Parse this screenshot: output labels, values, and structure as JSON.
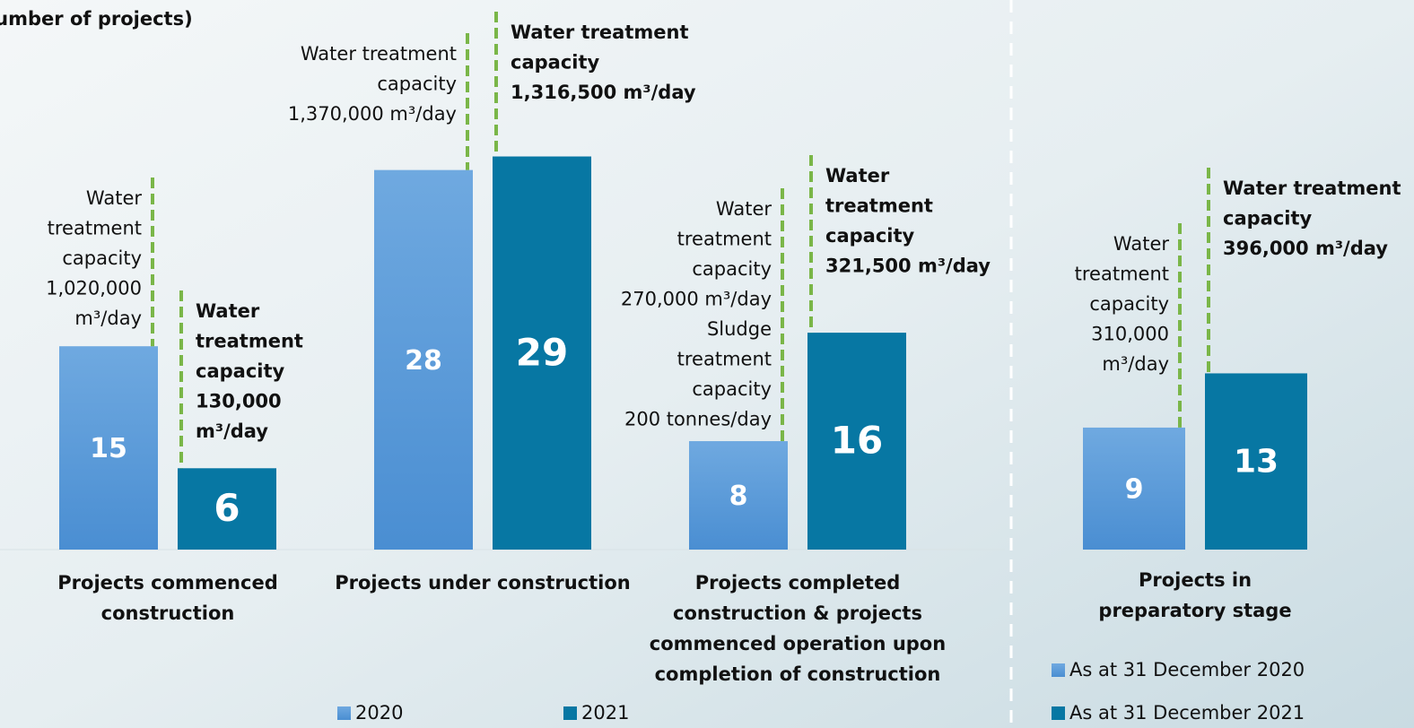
{
  "chart_data": [
    {
      "type": "bar",
      "title": "(Number of projects)",
      "categories": [
        "Projects commenced construction",
        "Projects under construction",
        "Projects completed construction & projects commenced operation upon completion of construction"
      ],
      "category_lines": [
        [
          "Projects commenced",
          "construction"
        ],
        [
          "Projects under construction"
        ],
        [
          "Projects completed",
          "construction & projects",
          "commenced operation upon",
          "completion of construction"
        ]
      ],
      "series": [
        {
          "name": "2020",
          "color": "#5b9bd9",
          "values": [
            15,
            28,
            8
          ],
          "annotations": [
            [
              "Water",
              "treatment",
              "capacity",
              "1,020,000",
              "m³/day"
            ],
            [
              "Water treatment",
              "capacity",
              "1,370,000 m³/day"
            ],
            [
              "Water",
              "treatment",
              "capacity",
              "270,000 m³/day",
              "Sludge",
              "treatment",
              "capacity",
              "200 tonnes/day"
            ]
          ]
        },
        {
          "name": "2021",
          "color": "#0777a3",
          "values": [
            6,
            29,
            16
          ],
          "annotations": [
            [
              "Water",
              "treatment",
              "capacity",
              "130,000",
              "m³/day"
            ],
            [
              "Water treatment",
              "capacity",
              "1,316,500 m³/day"
            ],
            [
              "Water",
              "treatment",
              "capacity",
              "321,500 m³/day"
            ]
          ]
        }
      ]
    },
    {
      "type": "bar",
      "categories": [
        "Projects in preparatory stage"
      ],
      "category_lines": [
        [
          "Projects in",
          "preparatory stage"
        ]
      ],
      "series": [
        {
          "name": "As at 31 December 2020",
          "color": "#5b9bd9",
          "values": [
            9
          ],
          "annotations": [
            [
              "Water",
              "treatment",
              "capacity",
              "310,000",
              "m³/day"
            ]
          ]
        },
        {
          "name": "As at 31 December 2021",
          "color": "#0777a3",
          "values": [
            13
          ],
          "annotations": [
            [
              "Water treatment",
              "capacity",
              "396,000 m³/day"
            ]
          ]
        }
      ]
    }
  ]
}
